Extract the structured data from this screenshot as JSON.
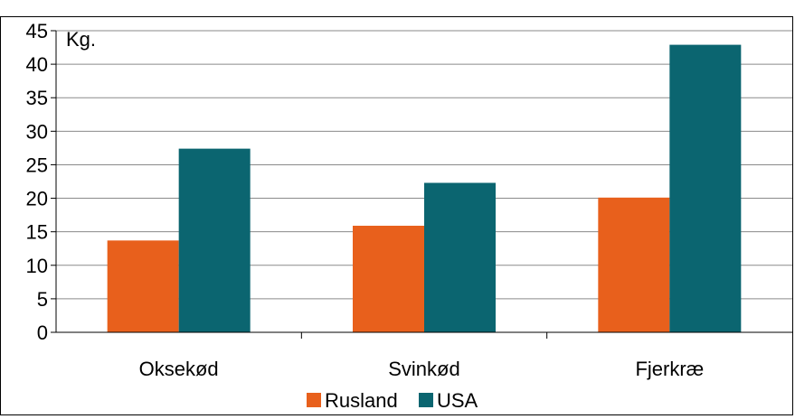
{
  "title_fragment": "",
  "chart_data": {
    "type": "bar",
    "title": "",
    "unit_label": "Kg.",
    "categories": [
      "Oksekød",
      "Svinkød",
      "Fjerkræ"
    ],
    "series": [
      {
        "name": "Rusland",
        "color": "#e8601c",
        "values": [
          13.7,
          15.9,
          20.1
        ]
      },
      {
        "name": "USA",
        "color": "#0b6570",
        "values": [
          27.4,
          22.3,
          42.9
        ]
      }
    ],
    "ylim": [
      0,
      45
    ],
    "yticks": [
      0,
      5,
      10,
      15,
      20,
      25,
      30,
      35,
      40,
      45
    ],
    "grid": true,
    "legend": "bottom"
  }
}
